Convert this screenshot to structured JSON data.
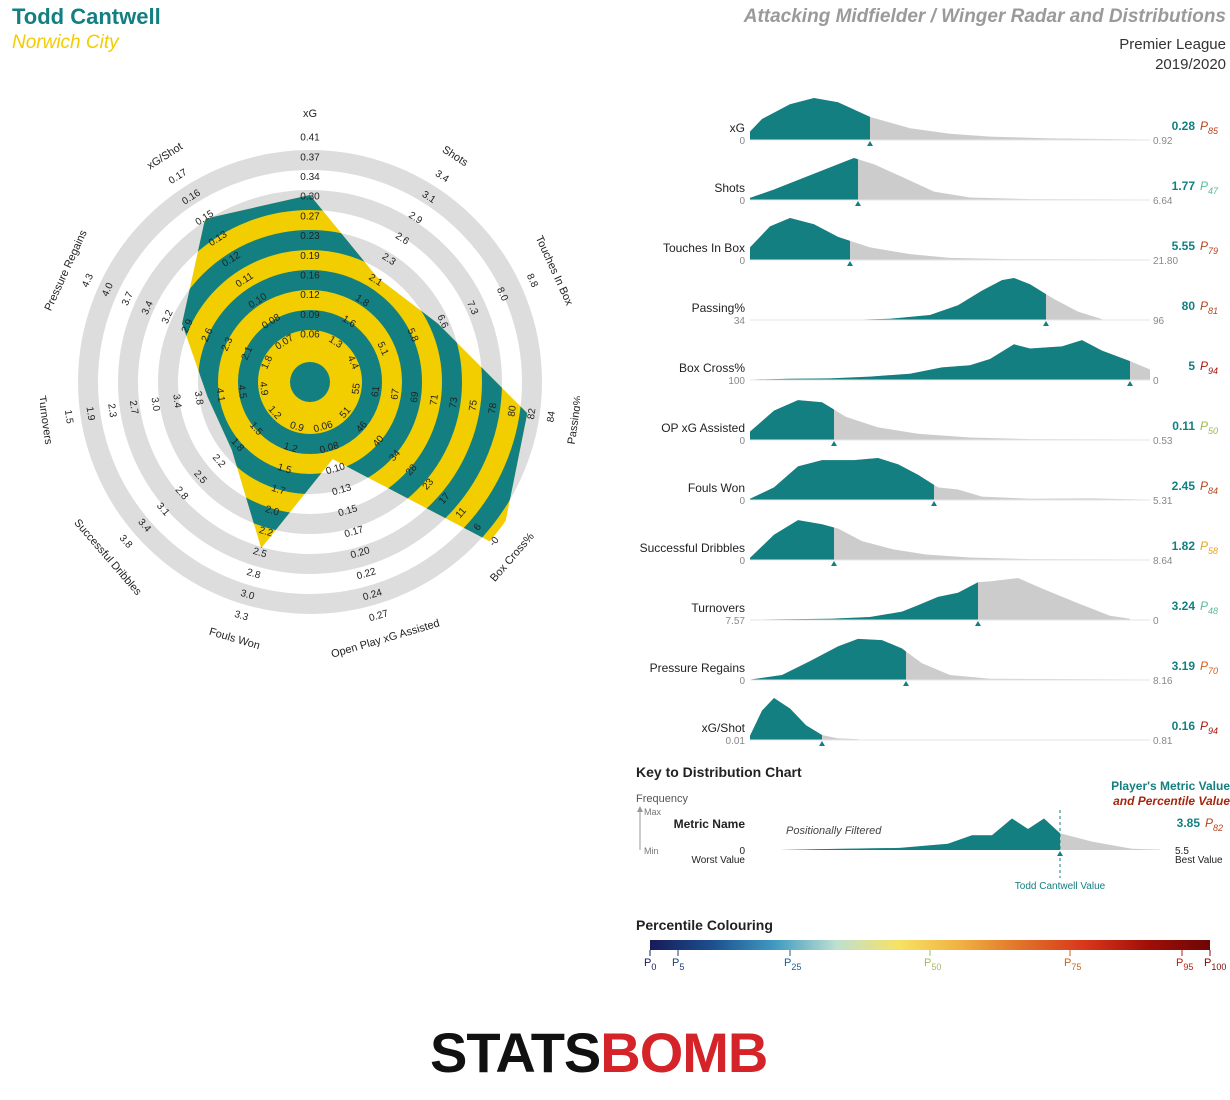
{
  "header": {
    "player": "Todd Cantwell",
    "team": "Norwich City",
    "title": "Attacking Midfielder / Winger Radar and Distributions",
    "competition": "Premier League",
    "season": "2019/2020"
  },
  "colors": {
    "teal": "#137f80",
    "yellow": "#f2cd00",
    "ring_grey": "#dddddd",
    "dist_grey": "#cccccc"
  },
  "chart_data": [
    {
      "type": "radar",
      "axes": [
        {
          "label": "xG",
          "ticks": [
            "0.06",
            "0.09",
            "0.12",
            "0.16",
            "0.19",
            "0.23",
            "0.27",
            "0.30",
            "0.34",
            "0.37",
            "0.41"
          ],
          "value_fraction": 0.72
        },
        {
          "label": "Shots",
          "ticks": [
            "1.3",
            "1.6",
            "1.8",
            "2.1",
            "2.3",
            "2.6",
            "2.9",
            "3.1",
            "3.4"
          ],
          "value_fraction": 0.45
        },
        {
          "label": "Touches In Box",
          "ticks": [
            "4.4",
            "5.1",
            "5.8",
            "6.6",
            "7.3",
            "8.0",
            "8.8"
          ],
          "value_fraction": 0.52
        },
        {
          "label": "Passing%",
          "ticks": [
            "55",
            "61",
            "67",
            "69",
            "71",
            "73",
            "75",
            "78",
            "80",
            "82",
            "84"
          ],
          "value_fraction": 0.86
        },
        {
          "label": "Box Cross%",
          "ticks": [
            "51",
            "46",
            "40",
            "34",
            "28",
            "23",
            "17",
            "11",
            "6",
            "-0"
          ],
          "value_fraction": 1.0
        },
        {
          "label": "Open Play xG Assisted",
          "ticks": [
            "0.06",
            "0.08",
            "0.10",
            "0.13",
            "0.15",
            "0.17",
            "0.20",
            "0.22",
            "0.24",
            "0.27"
          ],
          "value_fraction": 0.26
        },
        {
          "label": "Fouls Won",
          "ticks": [
            "0.9",
            "1.2",
            "1.5",
            "1.7",
            "2.0",
            "2.2",
            "2.5",
            "2.8",
            "3.0",
            "3.3"
          ],
          "value_fraction": 0.66
        },
        {
          "label": "Successful Dribbles",
          "ticks": [
            "1.2",
            "1.5",
            "1.8",
            "2.2",
            "2.5",
            "2.8",
            "3.1",
            "3.4",
            "3.8"
          ],
          "value_fraction": 0.36
        },
        {
          "label": "Turnovers",
          "ticks": [
            "4.9",
            "4.5",
            "4.1",
            "3.8",
            "3.4",
            "3.0",
            "2.7",
            "2.3",
            "1.9",
            "1.5"
          ],
          "value_fraction": 0.36
        },
        {
          "label": "Pressure Regains",
          "ticks": [
            "1.8",
            "2.1",
            "2.3",
            "2.6",
            "2.9",
            "3.2",
            "3.4",
            "3.7",
            "4.0",
            "4.3"
          ],
          "value_fraction": 0.52
        },
        {
          "label": "xG/Shot",
          "ticks": [
            "0.07",
            "0.08",
            "0.10",
            "0.11",
            "0.12",
            "0.13",
            "0.15",
            "0.16",
            "0.17"
          ],
          "value_fraction": 0.75
        }
      ]
    },
    {
      "type": "distribution",
      "metrics": [
        {
          "label": "xG",
          "min": "0",
          "max": "0.92",
          "value": "0.28",
          "percentile": "85",
          "pct_color": "#b5431c",
          "marker": 0.3,
          "density": [
            [
              0,
              0.2
            ],
            [
              0.03,
              0.5
            ],
            [
              0.1,
              0.85
            ],
            [
              0.16,
              1
            ],
            [
              0.22,
              0.9
            ],
            [
              0.3,
              0.55
            ],
            [
              0.4,
              0.28
            ],
            [
              0.5,
              0.15
            ],
            [
              0.6,
              0.08
            ],
            [
              0.75,
              0.04
            ],
            [
              1,
              0.01
            ]
          ]
        },
        {
          "label": "Shots",
          "min": "0",
          "max": "6.64",
          "value": "1.77",
          "percentile": "47",
          "pct_color": "#5ab9a0",
          "marker": 0.27,
          "density": [
            [
              0,
              0.05
            ],
            [
              0.06,
              0.25
            ],
            [
              0.14,
              0.55
            ],
            [
              0.22,
              0.85
            ],
            [
              0.26,
              1
            ],
            [
              0.31,
              0.85
            ],
            [
              0.38,
              0.55
            ],
            [
              0.46,
              0.2
            ],
            [
              0.55,
              0.06
            ],
            [
              0.7,
              0.02
            ],
            [
              1,
              0.01
            ]
          ]
        },
        {
          "label": "Touches In Box",
          "min": "0",
          "max": "21.80",
          "value": "5.55",
          "percentile": "79",
          "pct_color": "#b5431c",
          "marker": 0.25,
          "density": [
            [
              0,
              0.3
            ],
            [
              0.05,
              0.8
            ],
            [
              0.1,
              1
            ],
            [
              0.16,
              0.85
            ],
            [
              0.22,
              0.55
            ],
            [
              0.3,
              0.3
            ],
            [
              0.4,
              0.14
            ],
            [
              0.5,
              0.05
            ],
            [
              0.65,
              0.02
            ],
            [
              1,
              0.01
            ]
          ]
        },
        {
          "label": "Passing%",
          "min": "34",
          "max": "96",
          "value": "80",
          "percentile": "81",
          "pct_color": "#b5431c",
          "marker": 0.74,
          "density": [
            [
              0.24,
              0
            ],
            [
              0.35,
              0.03
            ],
            [
              0.45,
              0.12
            ],
            [
              0.52,
              0.35
            ],
            [
              0.58,
              0.7
            ],
            [
              0.63,
              0.95
            ],
            [
              0.66,
              1
            ],
            [
              0.7,
              0.85
            ],
            [
              0.76,
              0.5
            ],
            [
              0.82,
              0.2
            ],
            [
              0.88,
              0.02
            ]
          ]
        },
        {
          "label": "Box Cross%",
          "min": "100",
          "max": "0",
          "value": "5",
          "percentile": "94",
          "pct_color": "#a6150c",
          "marker": 0.95,
          "density": [
            [
              0,
              0.01
            ],
            [
              0.1,
              0.03
            ],
            [
              0.2,
              0.04
            ],
            [
              0.3,
              0.08
            ],
            [
              0.4,
              0.15
            ],
            [
              0.48,
              0.3
            ],
            [
              0.55,
              0.35
            ],
            [
              0.6,
              0.5
            ],
            [
              0.66,
              0.85
            ],
            [
              0.7,
              0.75
            ],
            [
              0.78,
              0.8
            ],
            [
              0.83,
              0.95
            ],
            [
              0.88,
              0.7
            ],
            [
              0.95,
              0.45
            ],
            [
              1,
              0.25
            ]
          ]
        },
        {
          "label": "OP xG Assisted",
          "min": "0",
          "max": "0.53",
          "value": "0.11",
          "percentile": "50",
          "pct_color": "#9fb74d",
          "marker": 0.21,
          "density": [
            [
              0,
              0.2
            ],
            [
              0.06,
              0.7
            ],
            [
              0.12,
              0.95
            ],
            [
              0.18,
              0.9
            ],
            [
              0.24,
              0.55
            ],
            [
              0.32,
              0.3
            ],
            [
              0.42,
              0.15
            ],
            [
              0.55,
              0.06
            ],
            [
              0.7,
              0.02
            ],
            [
              1,
              0.01
            ]
          ]
        },
        {
          "label": "Fouls Won",
          "min": "0",
          "max": "5.31",
          "value": "2.45",
          "percentile": "84",
          "pct_color": "#b5431c",
          "marker": 0.46,
          "density": [
            [
              0,
              0.03
            ],
            [
              0.06,
              0.3
            ],
            [
              0.12,
              0.8
            ],
            [
              0.18,
              0.95
            ],
            [
              0.26,
              0.95
            ],
            [
              0.32,
              1
            ],
            [
              0.37,
              0.85
            ],
            [
              0.42,
              0.6
            ],
            [
              0.47,
              0.3
            ],
            [
              0.52,
              0.25
            ],
            [
              0.58,
              0.08
            ],
            [
              0.7,
              0.03
            ],
            [
              0.85,
              0.04
            ],
            [
              1,
              0.01
            ]
          ]
        },
        {
          "label": "Successful Dribbles",
          "min": "0",
          "max": "8.64",
          "value": "1.82",
          "percentile": "58",
          "pct_color": "#e3a421",
          "marker": 0.21,
          "density": [
            [
              0,
              0.05
            ],
            [
              0.06,
              0.6
            ],
            [
              0.12,
              0.95
            ],
            [
              0.18,
              0.85
            ],
            [
              0.22,
              0.75
            ],
            [
              0.28,
              0.45
            ],
            [
              0.36,
              0.25
            ],
            [
              0.44,
              0.13
            ],
            [
              0.55,
              0.06
            ],
            [
              0.7,
              0.02
            ],
            [
              1,
              0.01
            ]
          ]
        },
        {
          "label": "Turnovers",
          "min": "7.57",
          "max": "0",
          "value": "3.24",
          "percentile": "48",
          "pct_color": "#5ab9a0",
          "marker": 0.57,
          "density": [
            [
              0,
              0.01
            ],
            [
              0.2,
              0.03
            ],
            [
              0.3,
              0.07
            ],
            [
              0.38,
              0.2
            ],
            [
              0.42,
              0.35
            ],
            [
              0.47,
              0.55
            ],
            [
              0.52,
              0.65
            ],
            [
              0.57,
              0.9
            ],
            [
              0.6,
              0.92
            ],
            [
              0.67,
              1
            ],
            [
              0.73,
              0.75
            ],
            [
              0.82,
              0.4
            ],
            [
              0.9,
              0.1
            ],
            [
              0.95,
              0.03
            ]
          ]
        },
        {
          "label": "Pressure Regains",
          "min": "0",
          "max": "8.16",
          "value": "3.19",
          "percentile": "70",
          "pct_color": "#d35e1d",
          "marker": 0.39,
          "density": [
            [
              0,
              0.01
            ],
            [
              0.08,
              0.12
            ],
            [
              0.15,
              0.45
            ],
            [
              0.22,
              0.8
            ],
            [
              0.27,
              0.98
            ],
            [
              0.33,
              0.95
            ],
            [
              0.38,
              0.75
            ],
            [
              0.43,
              0.4
            ],
            [
              0.5,
              0.12
            ],
            [
              0.6,
              0.03
            ],
            [
              1,
              0.01
            ]
          ]
        },
        {
          "label": "xG/Shot",
          "min": "0.01",
          "max": "0.81",
          "value": "0.16",
          "percentile": "94",
          "pct_color": "#a6150c",
          "marker": 0.18,
          "density": [
            [
              0,
              0.1
            ],
            [
              0.03,
              0.7
            ],
            [
              0.06,
              1
            ],
            [
              0.1,
              0.75
            ],
            [
              0.14,
              0.35
            ],
            [
              0.18,
              0.12
            ],
            [
              0.22,
              0.04
            ],
            [
              0.27,
              0.02
            ]
          ]
        }
      ]
    },
    {
      "type": "area",
      "title": "Key to Distribution Chart",
      "ylabel": "Frequency",
      "y_max_label": "Max",
      "y_min_label": "Min",
      "metric_label": "Metric Name",
      "filter_label": "Positionally Filtered",
      "worst_label": "Worst Value",
      "best_label": "Best Value",
      "min": "0",
      "max": "5.5",
      "value": "3.85",
      "percentile": "82",
      "pct_color": "#b5431c",
      "legend_value": "Player's Metric Value",
      "legend_percentile": "and Percentile Value",
      "marker_label": "Todd Cantwell Value",
      "marker": 0.7,
      "density": [
        [
          0,
          0
        ],
        [
          0.1,
          0.02
        ],
        [
          0.3,
          0.05
        ],
        [
          0.42,
          0.15
        ],
        [
          0.48,
          0.35
        ],
        [
          0.53,
          0.35
        ],
        [
          0.58,
          0.75
        ],
        [
          0.62,
          0.5
        ],
        [
          0.66,
          0.75
        ],
        [
          0.7,
          0.4
        ],
        [
          0.78,
          0.2
        ],
        [
          0.88,
          0.03
        ],
        [
          0.95,
          0.01
        ]
      ]
    },
    {
      "type": "heatmap",
      "title": "Percentile Colouring",
      "stops": [
        "0",
        "5",
        "25",
        "50",
        "75",
        "95",
        "100"
      ],
      "stop_colors": [
        "#1a1a5e",
        "#1f3e78",
        "#1b5f92",
        "#a5b868",
        "#c6671e",
        "#b02111",
        "#7e0a05"
      ]
    }
  ],
  "logo": {
    "part1": "STATS",
    "part2": "BOMB",
    "color1": "#111111",
    "color2": "#d5232a"
  }
}
